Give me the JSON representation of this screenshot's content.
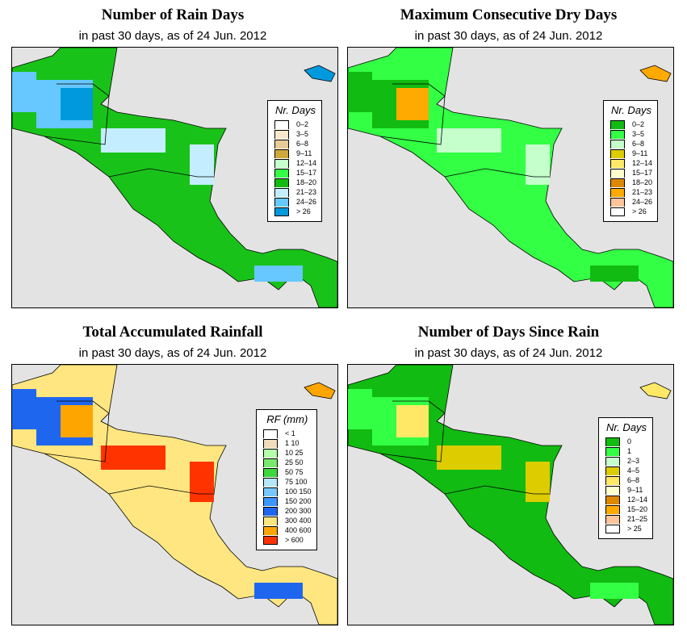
{
  "panels": [
    {
      "title": "Number of Rain Days",
      "subtitle": "in past 30 days, as of  24 Jun. 2012",
      "land": "#19c219",
      "patch1": "#66c8ff",
      "patch2": "#c4eeff",
      "patch3": "#0099dd",
      "legend": {
        "title": "Nr. Days",
        "items": [
          {
            "label": "0–2",
            "color": "#ffffff"
          },
          {
            "label": "3–5",
            "color": "#f8e8cc"
          },
          {
            "label": "6–8",
            "color": "#e8cc96"
          },
          {
            "label": "9–11",
            "color": "#d0a83a"
          },
          {
            "label": "12–14",
            "color": "#c4ffcc"
          },
          {
            "label": "15–17",
            "color": "#33ff44"
          },
          {
            "label": "18–20",
            "color": "#11bb11"
          },
          {
            "label": "21–23",
            "color": "#c4eeff"
          },
          {
            "label": "24–26",
            "color": "#66c8ff"
          },
          {
            "label": "> 26",
            "color": "#0099dd"
          }
        ]
      }
    },
    {
      "title": "Maximum Consecutive Dry Days",
      "subtitle": "in past 30 days, as of  24 Jun. 2012",
      "land": "#33ff44",
      "patch1": "#11bb11",
      "patch2": "#c4ffcc",
      "patch3": "#ffaa00",
      "legend": {
        "title": "Nr. Days",
        "items": [
          {
            "label": "0–2",
            "color": "#11bb11"
          },
          {
            "label": "3–5",
            "color": "#33ff44"
          },
          {
            "label": "6–8",
            "color": "#c4ffcc"
          },
          {
            "label": "9–11",
            "color": "#ddcc00"
          },
          {
            "label": "12–14",
            "color": "#ffe866"
          },
          {
            "label": "15–17",
            "color": "#ffffcc"
          },
          {
            "label": "18–20",
            "color": "#dd8800"
          },
          {
            "label": "21–23",
            "color": "#ffaa00"
          },
          {
            "label": "24–26",
            "color": "#ffc499"
          },
          {
            "label": "> 26",
            "color": "#ffffff"
          }
        ]
      }
    },
    {
      "title": "Total Accumulated Rainfall",
      "subtitle": "in past 30 days, as of  24 Jun. 2012",
      "land": "#ffe680",
      "patch1": "#1f66ee",
      "patch2": "#ff3300",
      "patch3": "#ffa500",
      "legend": {
        "title": "RF (mm)",
        "items": [
          {
            "label": "< 1",
            "color": "#ffffff"
          },
          {
            "label": "1  10",
            "color": "#f0dcbc"
          },
          {
            "label": "10  25",
            "color": "#b4ffaa"
          },
          {
            "label": "25  50",
            "color": "#7ae86e"
          },
          {
            "label": "50  75",
            "color": "#3cd83c"
          },
          {
            "label": "75  100",
            "color": "#b4e8f8"
          },
          {
            "label": "100  150",
            "color": "#78c8ff"
          },
          {
            "label": "150  200",
            "color": "#3c96ff"
          },
          {
            "label": "200  300",
            "color": "#1f66ee"
          },
          {
            "label": "300  400",
            "color": "#ffe680"
          },
          {
            "label": "400  600",
            "color": "#ffa500"
          },
          {
            "label": "> 600",
            "color": "#ff3300"
          }
        ]
      }
    },
    {
      "title": "Number of Days Since Rain",
      "subtitle": "in past 30 days, as of  24 Jun. 2012",
      "land": "#11bb11",
      "patch1": "#33ff44",
      "patch2": "#ddcc00",
      "patch3": "#ffe866",
      "legend": {
        "title": "Nr. Days",
        "items": [
          {
            "label": "0",
            "color": "#11bb11"
          },
          {
            "label": "1",
            "color": "#33ff44"
          },
          {
            "label": "2–3",
            "color": "#c4ffcc"
          },
          {
            "label": "4–5",
            "color": "#ddcc00"
          },
          {
            "label": "6–8",
            "color": "#ffe866"
          },
          {
            "label": "9–11",
            "color": "#ffffcc"
          },
          {
            "label": "12–14",
            "color": "#dd8800"
          },
          {
            "label": "15–20",
            "color": "#ffaa00"
          },
          {
            "label": "21–25",
            "color": "#ffc499"
          },
          {
            "label": "> 25",
            "color": "#ffffff"
          }
        ]
      }
    }
  ]
}
